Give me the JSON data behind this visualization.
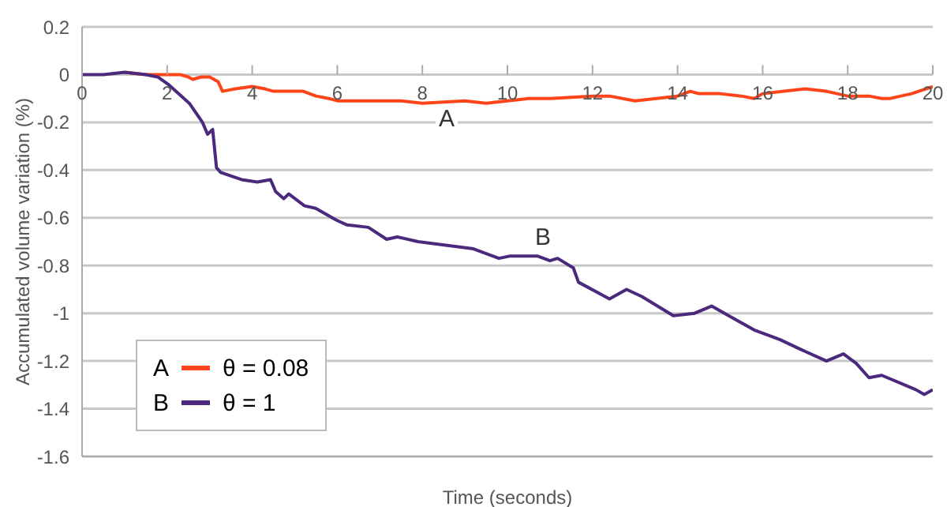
{
  "chart_data": {
    "type": "line",
    "xlabel": "Time (seconds)",
    "ylabel": "Accumulated volume variation (%)",
    "xlim": [
      0,
      20
    ],
    "xticks": [
      0,
      2,
      4,
      6,
      8,
      10,
      12,
      14,
      16,
      18,
      20
    ],
    "ylim": [
      -1.6,
      0.2
    ],
    "yticks": [
      0.2,
      0,
      -0.2,
      -0.4,
      -0.6,
      -0.8,
      -1,
      -1.2,
      -1.4,
      -1.6
    ],
    "grid": "y",
    "legend": "bottom left",
    "marker": "none",
    "line_style": "solid",
    "annotations": [
      "A",
      "B"
    ],
    "series": [
      {
        "name": "θ = 0.08",
        "color": "#ff4419",
        "x": [
          1,
          1.5,
          2,
          2.3,
          2.5,
          2.6,
          2.8,
          3.0,
          3.2,
          3.3,
          3.6,
          4,
          4.3,
          4.5,
          4.8,
          5.2,
          5.5,
          5.8,
          6,
          7,
          7.5,
          8,
          9,
          9.5,
          10,
          10.5,
          11,
          12,
          12.4,
          13,
          13.5,
          14,
          14.3,
          14.5,
          15,
          15.5,
          15.8,
          16,
          16.5,
          17,
          17.5,
          18,
          18.5,
          18.8,
          19,
          19.5,
          20
        ],
        "values": [
          0.01,
          0,
          0,
          0,
          -0.01,
          -0.02,
          -0.01,
          -0.01,
          -0.03,
          -0.07,
          -0.06,
          -0.05,
          -0.06,
          -0.07,
          -0.07,
          -0.07,
          -0.09,
          -0.1,
          -0.11,
          -0.11,
          -0.11,
          -0.12,
          -0.11,
          -0.12,
          -0.11,
          -0.1,
          -0.1,
          -0.09,
          -0.09,
          -0.11,
          -0.1,
          -0.09,
          -0.07,
          -0.08,
          -0.08,
          -0.09,
          -0.1,
          -0.08,
          -0.07,
          -0.06,
          -0.07,
          -0.09,
          -0.09,
          -0.1,
          -0.1,
          -0.08,
          -0.05
        ]
      },
      {
        "name": "θ = 1",
        "color": "#4b2a7e",
        "x": [
          0,
          0.5,
          1,
          1.5,
          1.78,
          2.02,
          2.52,
          2.83,
          2.95,
          3.07,
          3.16,
          3.26,
          3.75,
          4.12,
          4.43,
          4.55,
          4.74,
          4.86,
          5.23,
          5.49,
          5.98,
          6.23,
          6.73,
          7.16,
          7.41,
          7.9,
          9.2,
          9.8,
          10.07,
          10.7,
          11.0,
          11.18,
          11.55,
          11.67,
          12.4,
          12.8,
          13.16,
          13.9,
          14.4,
          14.8,
          15.3,
          15.8,
          16.4,
          17.0,
          17.5,
          17.9,
          18.2,
          18.5,
          18.8,
          19.6,
          19.8,
          20
        ],
        "values": [
          0,
          0,
          0.01,
          0,
          -0.01,
          -0.04,
          -0.12,
          -0.2,
          -0.25,
          -0.23,
          -0.39,
          -0.41,
          -0.44,
          -0.45,
          -0.44,
          -0.49,
          -0.52,
          -0.5,
          -0.55,
          -0.56,
          -0.61,
          -0.63,
          -0.64,
          -0.69,
          -0.68,
          -0.7,
          -0.73,
          -0.77,
          -0.76,
          -0.76,
          -0.78,
          -0.77,
          -0.81,
          -0.87,
          -0.94,
          -0.9,
          -0.93,
          -1.01,
          -1,
          -0.97,
          -1.02,
          -1.07,
          -1.11,
          -1.16,
          -1.2,
          -1.17,
          -1.21,
          -1.27,
          -1.26,
          -1.32,
          -1.34,
          -1.32
        ]
      }
    ]
  }
}
